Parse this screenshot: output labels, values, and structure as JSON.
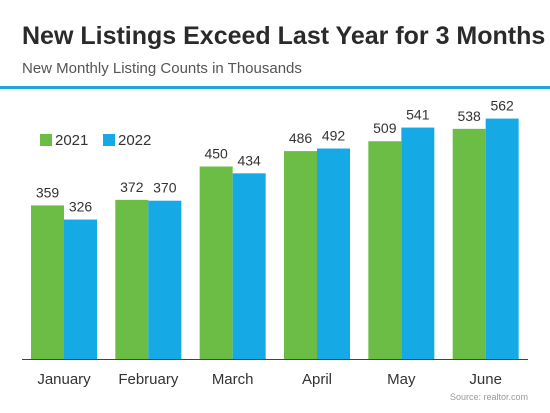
{
  "title": "New Listings Exceed Last Year for 3 Months",
  "subtitle": "New Monthly Listing Counts in Thousands",
  "source": "Source: realtor.com",
  "colors": {
    "accent": "#1fa7e1",
    "series_2021": "#6cbd45",
    "series_2022": "#15a9e6",
    "text": "#333333",
    "axis": "#444444"
  },
  "chart_data": {
    "type": "bar",
    "categories": [
      "January",
      "February",
      "March",
      "April",
      "May",
      "June"
    ],
    "series": [
      {
        "name": "2021",
        "values": [
          359,
          372,
          450,
          486,
          509,
          538
        ]
      },
      {
        "name": "2022",
        "values": [
          326,
          370,
          434,
          492,
          541,
          562
        ]
      }
    ],
    "legend": "top-left",
    "grid": false,
    "xlabel": "",
    "ylabel": "",
    "ylim": [
      0,
      600
    ]
  }
}
